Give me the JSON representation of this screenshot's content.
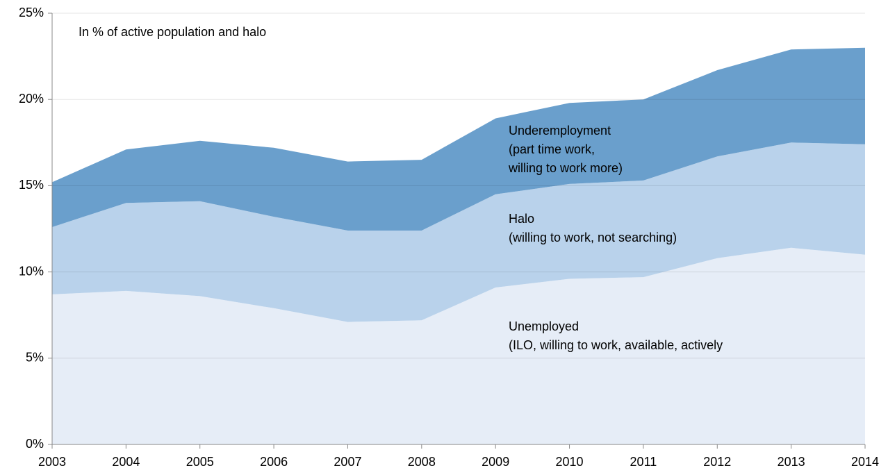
{
  "chart_data": {
    "type": "stacked_area",
    "subtitle": "In % of active population and halo",
    "x": [
      2003,
      2004,
      2005,
      2006,
      2007,
      2008,
      2009,
      2010,
      2011,
      2012,
      2013,
      2014
    ],
    "xlim": [
      2003,
      2014
    ],
    "xticks": [
      2003,
      2004,
      2005,
      2006,
      2007,
      2008,
      2009,
      2010,
      2011,
      2012,
      2013,
      2014
    ],
    "ylim": [
      0,
      25
    ],
    "yticks": [
      {
        "value": 0,
        "label": "0%"
      },
      {
        "value": 5,
        "label": "5%"
      },
      {
        "value": 10,
        "label": "10%"
      },
      {
        "value": 15,
        "label": "15%"
      },
      {
        "value": 20,
        "label": "20%"
      },
      {
        "value": 25,
        "label": "25%"
      }
    ],
    "grid": true,
    "series": [
      {
        "name": "Unemployed",
        "details": [
          "(ILO, willing to work, available, actively"
        ],
        "color": "#e6edf7",
        "values": [
          8.7,
          8.9,
          8.6,
          7.9,
          7.1,
          7.2,
          9.1,
          9.6,
          9.7,
          10.8,
          11.4,
          11.0
        ]
      },
      {
        "name": "Halo",
        "details": [
          "(willing to work, not searching)"
        ],
        "color": "#b9d2eb",
        "values": [
          3.9,
          5.1,
          5.5,
          5.3,
          5.3,
          5.2,
          5.4,
          5.5,
          5.6,
          5.9,
          6.1,
          6.4
        ]
      },
      {
        "name": "Underemployment",
        "details": [
          "(part time work,",
          "willing to work more)"
        ],
        "color": "#6a9fcc",
        "values": [
          2.6,
          3.1,
          3.5,
          4.0,
          4.0,
          4.1,
          4.4,
          4.7,
          4.7,
          5.0,
          5.4,
          5.6
        ]
      }
    ]
  }
}
